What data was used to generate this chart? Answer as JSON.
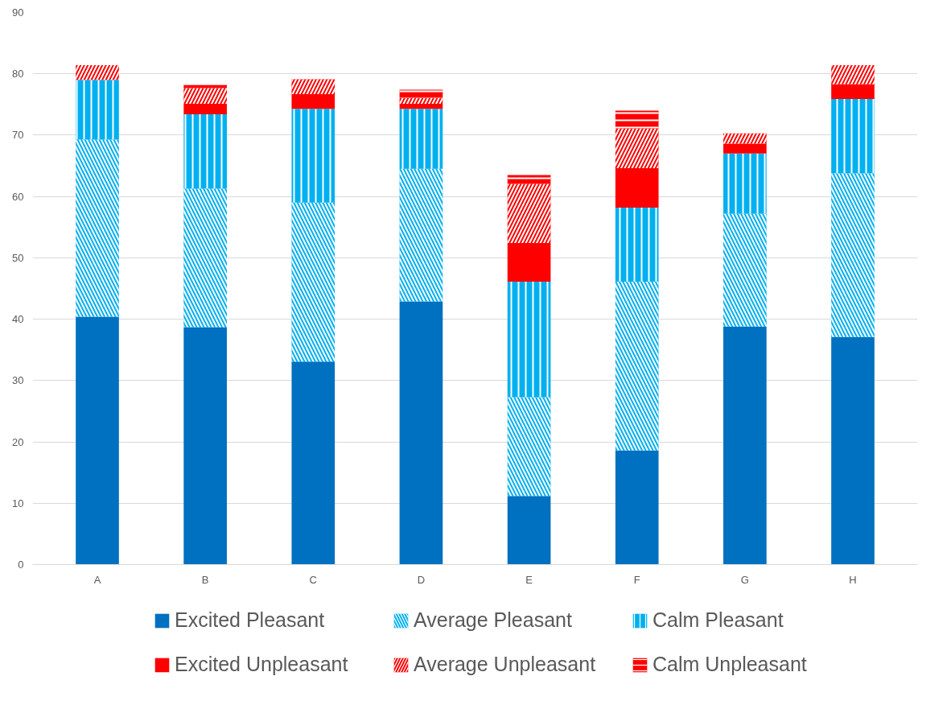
{
  "chart_data": {
    "type": "bar",
    "stacked": true,
    "categories": [
      "A",
      "B",
      "C",
      "D",
      "E",
      "F",
      "G",
      "H"
    ],
    "series": [
      {
        "name": "Excited Pleasant",
        "color": "#0070c0",
        "values": [
          40.4,
          38.7,
          33.1,
          42.9,
          11.2,
          18.6,
          38.8,
          37.1
        ]
      },
      {
        "name": "Average Pleasant",
        "color": "#00b0f0",
        "values": [
          28.9,
          22.6,
          25.9,
          21.6,
          16.1,
          27.5,
          18.4,
          26.7
        ]
      },
      {
        "name": "Calm Pleasant",
        "color": "#00b0f0",
        "values": [
          9.7,
          12.1,
          15.3,
          9.8,
          18.8,
          12.1,
          9.8,
          12.1
        ]
      },
      {
        "name": "Excited Unpleasant",
        "color": "#ff0000",
        "values": [
          0,
          1.7,
          2.4,
          0.8,
          6.3,
          6.4,
          1.6,
          2.4
        ]
      },
      {
        "name": "Average Unpleasant",
        "color": "#ff0000",
        "values": [
          2.4,
          2.6,
          2.4,
          1.0,
          9.7,
          6.5,
          1.7,
          3.1
        ]
      },
      {
        "name": "Calm Unpleasant",
        "color": "#ff0000",
        "values": [
          0,
          0.5,
          0,
          1.3,
          1.4,
          2.9,
          0,
          0
        ]
      }
    ],
    "ylim": [
      0,
      90
    ],
    "yticks": [
      0,
      10,
      20,
      30,
      40,
      50,
      60,
      70,
      80,
      90
    ],
    "grid": "y",
    "legend": "bottom"
  }
}
